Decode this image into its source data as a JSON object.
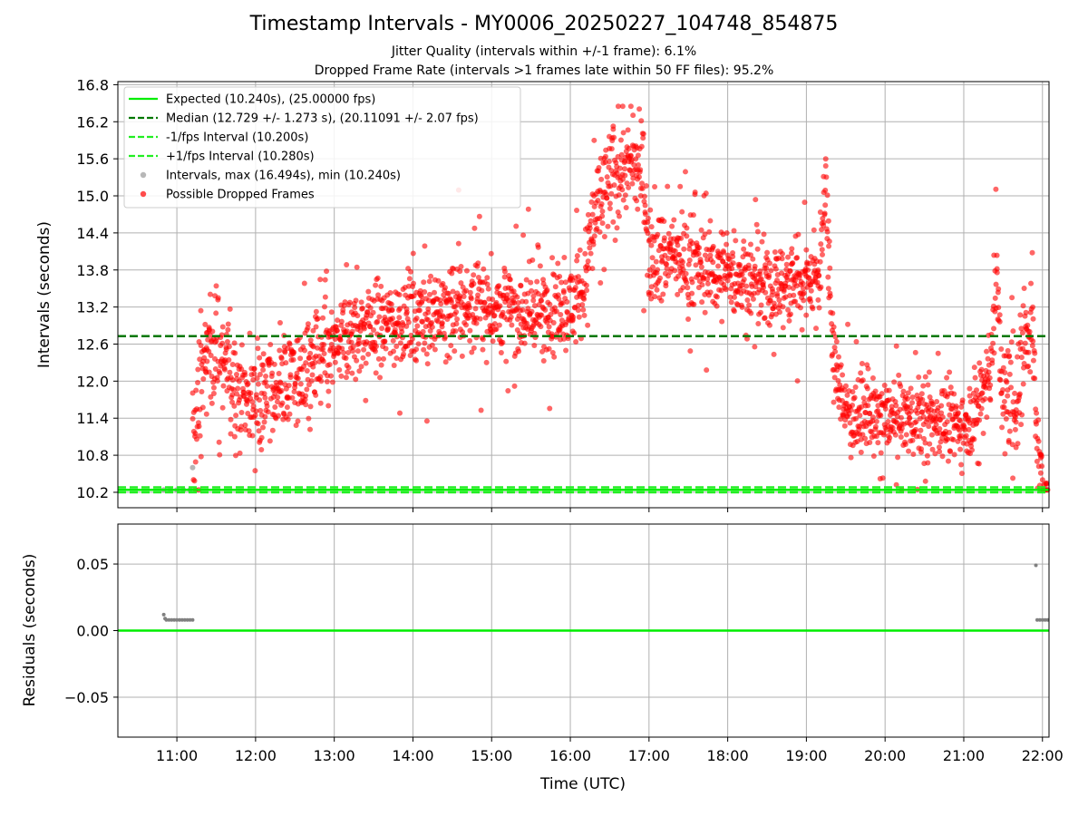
{
  "figure": {
    "title": "Timestamp Intervals - MY0006_20250227_104748_854875",
    "subtitle_jitter": "Jitter Quality (intervals within +/-1 frame): 6.1%",
    "subtitle_dropped": "Dropped Frame Rate (intervals >1 frames late within 50 FF files): 95.2%"
  },
  "colors": {
    "expected": "#00ee00",
    "median": "#007700",
    "fps_bounds": "#22ee22",
    "intervals": "#999999",
    "dropped": "#ff0000",
    "residual_points": "#808080",
    "grid": "#b0b0b0"
  },
  "chart_data": [
    {
      "type": "scatter",
      "panel": "top",
      "xlabel": "",
      "ylabel": "Intervals (seconds)",
      "ylim": [
        9.95,
        16.85
      ],
      "yticks": [
        "10.2",
        "10.8",
        "11.4",
        "12.0",
        "12.6",
        "13.2",
        "13.8",
        "14.4",
        "15.0",
        "15.6",
        "16.2",
        "16.8"
      ],
      "xlim": [
        "10:15",
        "22:05"
      ],
      "grid": true,
      "legend_position": "top-left",
      "reference_lines": [
        {
          "name": "Expected (10.240s), (25.00000 fps)",
          "y": 10.24,
          "style": "solid",
          "color": "#00ee00"
        },
        {
          "name": "Median (12.729 +/- 1.273 s), (20.11091 +/- 2.07 fps)",
          "y": 12.729,
          "style": "dashed",
          "color": "#007700"
        },
        {
          "name": "-1/fps Interval (10.200s)",
          "y": 10.2,
          "style": "dashed",
          "color": "#22ee22"
        },
        {
          "name": "+1/fps Interval (10.280s)",
          "y": 10.28,
          "style": "dashed",
          "color": "#22ee22"
        }
      ],
      "series": [
        {
          "name": "Intervals, max (16.494s), min (10.240s)",
          "color": "#999999",
          "points": [
            [
              "10:50",
              10.24
            ],
            [
              "10:55",
              10.24
            ],
            [
              "11:00",
              10.24
            ],
            [
              "11:05",
              10.24
            ],
            [
              "11:10",
              10.24
            ],
            [
              "11:12",
              10.6
            ]
          ]
        },
        {
          "name": "Possible Dropped Frames",
          "color": "#ff0000",
          "trend": [
            [
              "11:12",
              10.9
            ],
            [
              "11:15",
              11.4
            ],
            [
              "11:20",
              12.2
            ],
            [
              "11:25",
              12.5
            ],
            [
              "11:30",
              12.6
            ],
            [
              "11:35",
              12.4
            ],
            [
              "11:45",
              12.0
            ],
            [
              "11:55",
              11.7
            ],
            [
              "12:10",
              11.8
            ],
            [
              "12:25",
              12.0
            ],
            [
              "12:40",
              12.2
            ],
            [
              "12:55",
              12.4
            ],
            [
              "13:10",
              12.7
            ],
            [
              "13:30",
              12.9
            ],
            [
              "13:50",
              13.0
            ],
            [
              "14:10",
              13.1
            ],
            [
              "14:30",
              13.2
            ],
            [
              "15:00",
              13.2
            ],
            [
              "15:30",
              13.1
            ],
            [
              "16:00",
              13.2
            ],
            [
              "16:10",
              13.5
            ],
            [
              "16:15",
              14.3
            ],
            [
              "16:25",
              15.0
            ],
            [
              "16:40",
              15.5
            ],
            [
              "16:55",
              15.4
            ],
            [
              "17:00",
              14.1
            ],
            [
              "17:20",
              14.0
            ],
            [
              "17:45",
              13.8
            ],
            [
              "18:10",
              13.7
            ],
            [
              "18:30",
              13.5
            ],
            [
              "18:50",
              13.6
            ],
            [
              "19:10",
              13.7
            ],
            [
              "19:15",
              15.2
            ],
            [
              "19:20",
              12.4
            ],
            [
              "19:30",
              11.5
            ],
            [
              "20:00",
              11.4
            ],
            [
              "20:30",
              11.4
            ],
            [
              "21:00",
              11.3
            ],
            [
              "21:10",
              11.6
            ],
            [
              "21:20",
              12.2
            ],
            [
              "21:25",
              13.6
            ],
            [
              "21:30",
              11.6
            ],
            [
              "21:40",
              11.8
            ],
            [
              "21:48",
              12.7
            ],
            [
              "21:52",
              13.2
            ],
            [
              "21:55",
              11.2
            ],
            [
              "21:58",
              10.7
            ],
            [
              "22:00",
              10.24
            ],
            [
              "22:05",
              10.24
            ]
          ],
          "spread": [
            [
              "11:15",
              0.45
            ],
            [
              "12:00",
              0.4
            ],
            [
              "13:00",
              0.4
            ],
            [
              "14:00",
              0.35
            ],
            [
              "15:00",
              0.35
            ],
            [
              "16:10",
              0.35
            ],
            [
              "16:30",
              0.45
            ],
            [
              "17:00",
              0.35
            ],
            [
              "18:00",
              0.35
            ],
            [
              "19:00",
              0.35
            ],
            [
              "19:30",
              0.3
            ],
            [
              "21:00",
              0.3
            ],
            [
              "21:45",
              0.55
            ],
            [
              "22:05",
              0.05
            ]
          ]
        }
      ]
    },
    {
      "type": "scatter",
      "panel": "bottom",
      "xlabel": "Time (UTC)",
      "ylabel": "Residuals (seconds)",
      "ylim": [
        -0.08,
        0.08
      ],
      "yticks": [
        "−0.05",
        "0.00",
        "0.05"
      ],
      "yticks_values": [
        -0.05,
        0.0,
        0.05
      ],
      "xticks": [
        "11:00",
        "12:00",
        "13:00",
        "14:00",
        "15:00",
        "16:00",
        "17:00",
        "18:00",
        "19:00",
        "20:00",
        "21:00",
        "22:00"
      ],
      "xlim": [
        "10:15",
        "22:05"
      ],
      "grid": true,
      "reference_lines": [
        {
          "y": 0.0,
          "style": "solid",
          "color": "#00ee00"
        }
      ],
      "series": [
        {
          "color": "#808080",
          "points": [
            [
              "10:50",
              0.012
            ],
            [
              "10:51",
              0.009
            ],
            [
              "10:52",
              0.008
            ],
            [
              "10:54",
              0.008
            ],
            [
              "10:56",
              0.008
            ],
            [
              "10:58",
              0.008
            ],
            [
              "11:00",
              0.008
            ],
            [
              "11:02",
              0.008
            ],
            [
              "11:04",
              0.008
            ],
            [
              "11:06",
              0.008
            ],
            [
              "11:08",
              0.008
            ],
            [
              "11:10",
              0.008
            ],
            [
              "11:12",
              0.008
            ],
            [
              "21:55",
              0.049
            ],
            [
              "21:56",
              0.008
            ],
            [
              "21:58",
              0.008
            ],
            [
              "22:00",
              0.008
            ],
            [
              "22:02",
              0.008
            ],
            [
              "22:04",
              0.008
            ]
          ]
        }
      ]
    }
  ]
}
